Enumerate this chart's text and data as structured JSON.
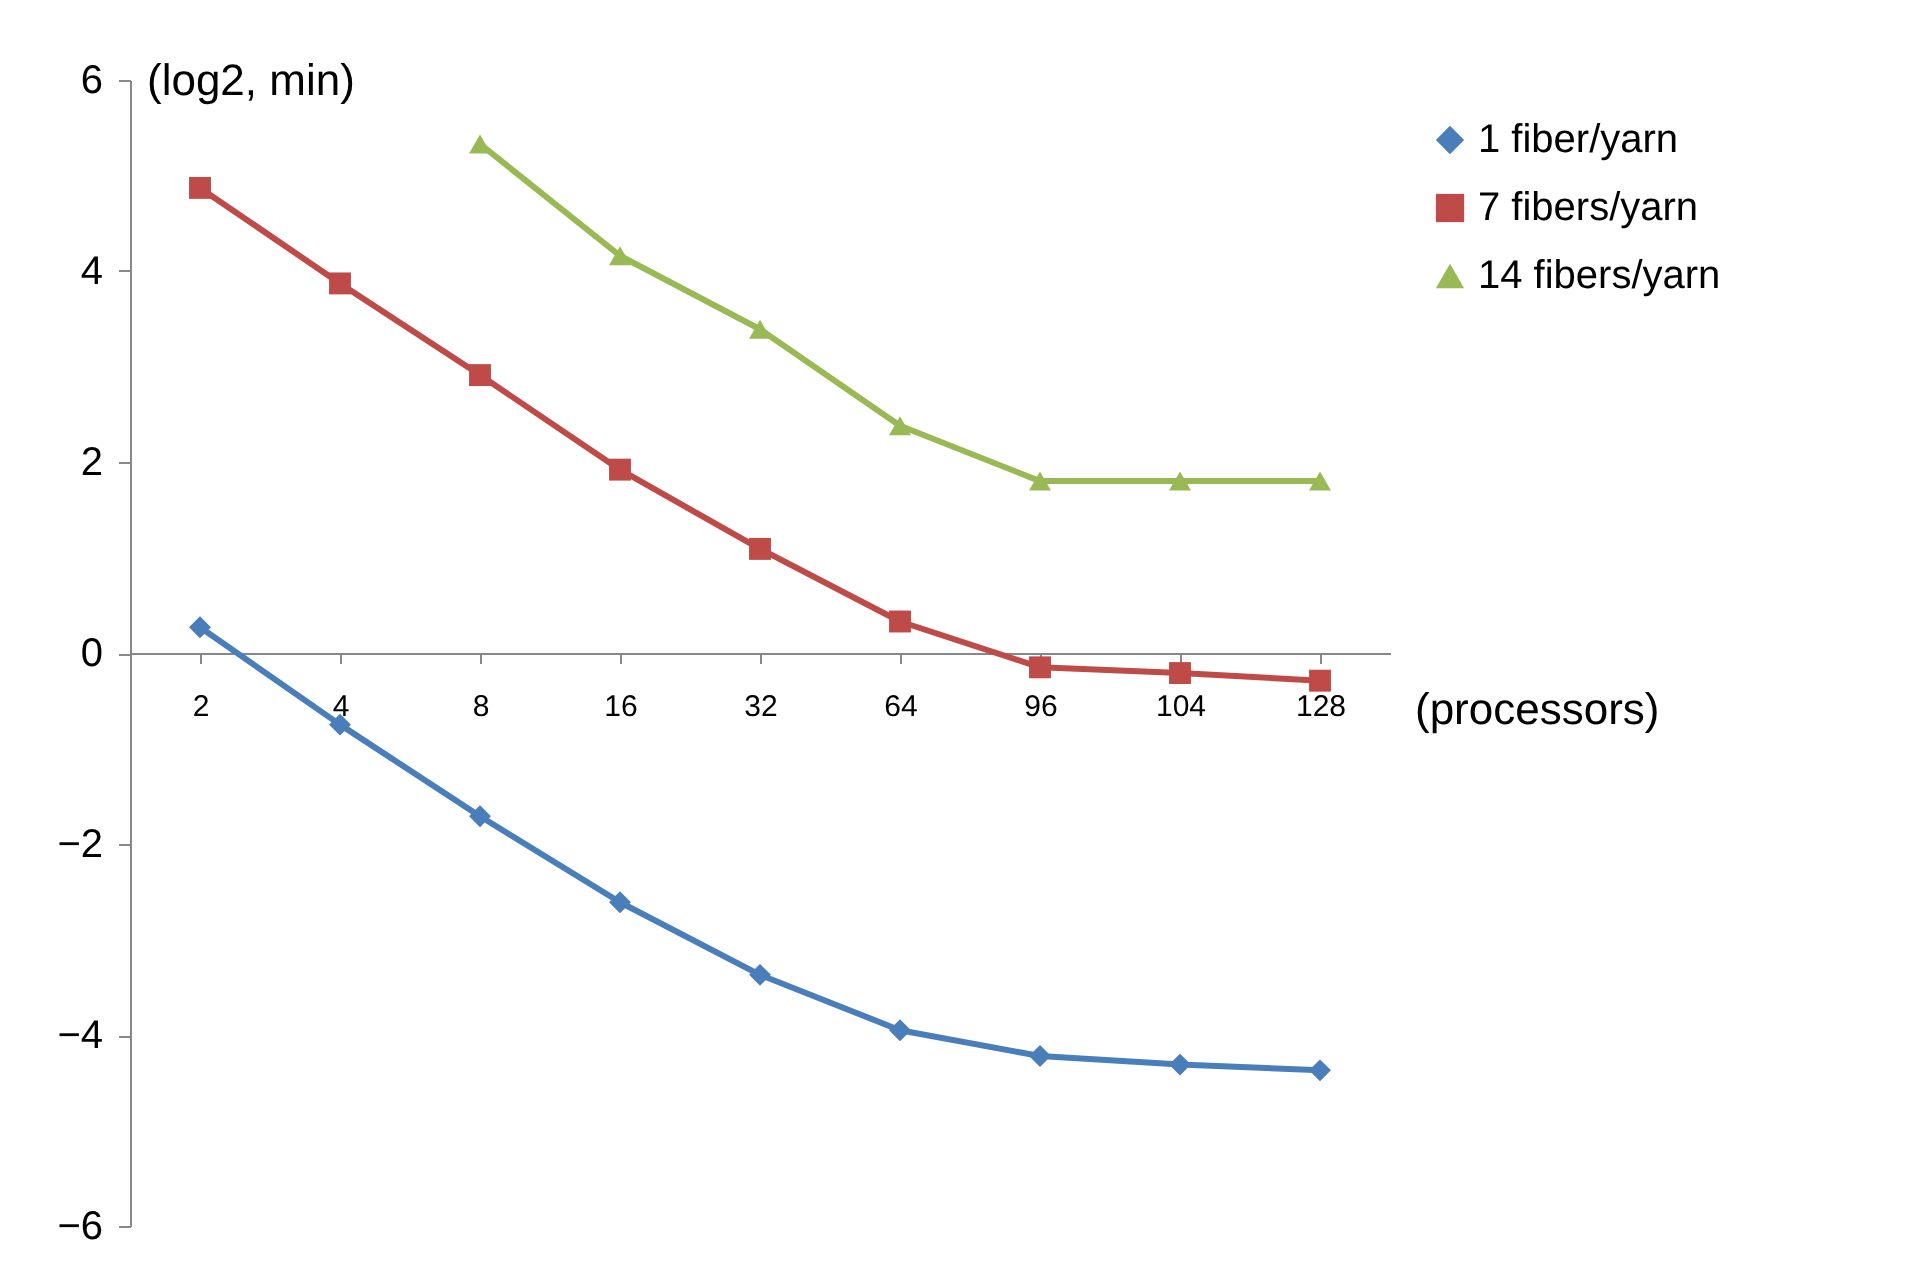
{
  "chart_data": {
    "type": "line",
    "xlabel": "(processors)",
    "ylabel": "(log2, min)",
    "categories": [
      "2",
      "4",
      "8",
      "16",
      "32",
      "64",
      "96",
      "104",
      "128"
    ],
    "series": [
      {
        "name": "1 fiber/yarn",
        "color": "#4a7ebb",
        "marker": "diamond",
        "values": [
          0.27,
          -0.75,
          -1.71,
          -2.61,
          -3.37,
          -3.95,
          -4.22,
          -4.31,
          -4.37
        ]
      },
      {
        "name": "7 fibers/yarn",
        "color": "#be4b48",
        "marker": "square",
        "values": [
          4.87,
          3.87,
          2.91,
          1.92,
          1.09,
          0.33,
          -0.15,
          -0.21,
          -0.29
        ]
      },
      {
        "name": "14 fibers/yarn",
        "color": "#98b954",
        "marker": "triangle",
        "values": [
          null,
          null,
          5.33,
          4.16,
          3.39,
          2.38,
          1.8,
          1.8,
          1.8
        ]
      }
    ],
    "ylim": [
      -6,
      6
    ],
    "yticks": [
      -6,
      -4,
      -2,
      0,
      2,
      4,
      6
    ],
    "grid": false,
    "legend": "top right",
    "line_style": "solid"
  }
}
